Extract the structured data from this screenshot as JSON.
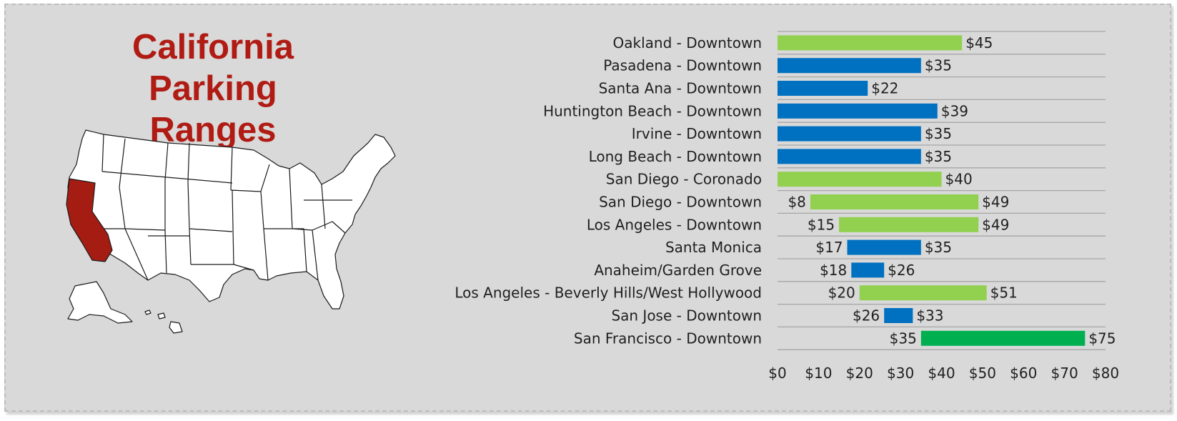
{
  "title": {
    "line1": "California",
    "line2": "Parking Ranges"
  },
  "colors": {
    "panel_bg": "#d9d9d9",
    "title": "#b01c14",
    "california_fill": "#a51c13",
    "blue": "#0070c0",
    "light_green": "#92d050",
    "green": "#00b050"
  },
  "map": {
    "icon": "usa-map-icon",
    "highlighted_state": "California"
  },
  "chart_data": {
    "type": "bar",
    "orientation": "horizontal",
    "variant": "floating-range",
    "categories": [
      "Oakland - Downtown",
      "Pasadena - Downtown",
      "Santa Ana - Downtown",
      "Huntington Beach - Downtown",
      "Irvine - Downtown",
      "Long Beach - Downtown",
      "San Diego - Coronado",
      "San Diego - Downtown",
      "Los Angeles - Downtown",
      "Santa Monica",
      "Anaheim/Garden Grove",
      "Los Angeles - Beverly Hills/West Hollywood",
      "San Jose - Downtown",
      "San Francisco - Downtown"
    ],
    "min": [
      0,
      0,
      0,
      0,
      0,
      0,
      0,
      8,
      15,
      17,
      18,
      20,
      26,
      35
    ],
    "max": [
      45,
      35,
      22,
      39,
      35,
      35,
      40,
      49,
      49,
      35,
      26,
      51,
      33,
      75
    ],
    "min_labels": [
      "",
      "",
      "",
      "",
      "",
      "",
      "",
      "$8",
      "$15",
      "$17",
      "$18",
      "$20",
      "$26",
      "$35"
    ],
    "max_labels": [
      "$45",
      "$35",
      "$22",
      "$39",
      "$35",
      "$35",
      "$40",
      "$49",
      "$49",
      "$35",
      "$26",
      "$51",
      "$33",
      "$75"
    ],
    "bar_colors": [
      "#92d050",
      "#0070c0",
      "#0070c0",
      "#0070c0",
      "#0070c0",
      "#0070c0",
      "#92d050",
      "#92d050",
      "#92d050",
      "#0070c0",
      "#0070c0",
      "#92d050",
      "#0070c0",
      "#00b050"
    ],
    "xlim": [
      0,
      80
    ],
    "x_ticks": [
      0,
      10,
      20,
      30,
      40,
      50,
      60,
      70,
      80
    ],
    "x_tick_labels": [
      "$0",
      "$10",
      "$20",
      "$30",
      "$40",
      "$50",
      "$60",
      "$70",
      "$80"
    ],
    "grid": "horizontal",
    "legend": "none"
  }
}
